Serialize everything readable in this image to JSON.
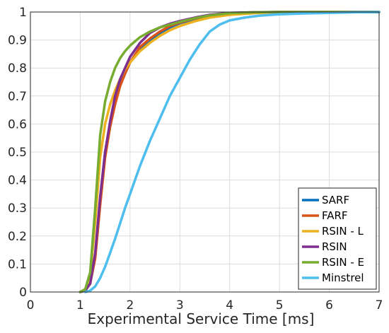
{
  "chart_data": {
    "type": "line",
    "title": "",
    "xlabel": "Experimental Service Time [ms]",
    "ylabel": "",
    "xlim": [
      0,
      7
    ],
    "ylim": [
      0,
      1
    ],
    "xticks": [
      0,
      1,
      2,
      3,
      4,
      5,
      6,
      7
    ],
    "yticks": [
      0,
      0.1,
      0.2,
      0.3,
      0.4,
      0.5,
      0.6,
      0.7,
      0.8,
      0.9,
      1
    ],
    "xtick_labels": [
      "0",
      "1",
      "2",
      "3",
      "4",
      "5",
      "6",
      "7"
    ],
    "ytick_labels": [
      "0",
      "0.1",
      "0.2",
      "0.3",
      "0.4",
      "0.5",
      "0.6",
      "0.7",
      "0.8",
      "0.9",
      "1"
    ],
    "grid": true,
    "legend_position": "bottom-right",
    "series": [
      {
        "name": "SARF",
        "color": "#0072bd",
        "x": [
          1.0,
          1.1,
          1.2,
          1.3,
          1.4,
          1.5,
          1.6,
          1.7,
          1.8,
          1.9,
          2.0,
          2.2,
          2.4,
          2.6,
          2.8,
          3.0,
          3.3,
          3.6,
          4.0,
          4.5,
          5.0,
          6.0,
          7.0
        ],
        "y": [
          0.0,
          0.005,
          0.03,
          0.13,
          0.33,
          0.5,
          0.6,
          0.68,
          0.74,
          0.78,
          0.82,
          0.87,
          0.9,
          0.925,
          0.945,
          0.96,
          0.975,
          0.985,
          0.995,
          0.998,
          1.0,
          1.0,
          1.0
        ]
      },
      {
        "name": "FARF",
        "color": "#d95319",
        "x": [
          1.0,
          1.1,
          1.2,
          1.3,
          1.4,
          1.5,
          1.6,
          1.7,
          1.8,
          1.9,
          2.0,
          2.2,
          2.4,
          2.6,
          2.8,
          3.0,
          3.3,
          3.6,
          4.0,
          4.5,
          5.0,
          6.0,
          7.0
        ],
        "y": [
          0.0,
          0.005,
          0.03,
          0.12,
          0.31,
          0.48,
          0.59,
          0.67,
          0.735,
          0.78,
          0.82,
          0.875,
          0.905,
          0.93,
          0.95,
          0.962,
          0.977,
          0.987,
          0.995,
          0.998,
          1.0,
          1.0,
          1.0
        ]
      },
      {
        "name": "RSIN - L",
        "color": "#edb120",
        "x": [
          1.0,
          1.1,
          1.2,
          1.3,
          1.4,
          1.5,
          1.6,
          1.7,
          1.8,
          1.9,
          2.0,
          2.2,
          2.4,
          2.6,
          2.8,
          3.0,
          3.3,
          3.6,
          4.0,
          4.5,
          5.0,
          6.0,
          7.0
        ],
        "y": [
          0.0,
          0.01,
          0.06,
          0.25,
          0.48,
          0.6,
          0.67,
          0.72,
          0.76,
          0.795,
          0.82,
          0.86,
          0.89,
          0.915,
          0.935,
          0.95,
          0.967,
          0.98,
          0.99,
          0.996,
          1.0,
          1.0,
          1.0
        ]
      },
      {
        "name": "RSIN",
        "color": "#7e2f8e",
        "x": [
          1.0,
          1.1,
          1.2,
          1.3,
          1.4,
          1.5,
          1.6,
          1.7,
          1.8,
          1.9,
          2.0,
          2.2,
          2.4,
          2.6,
          2.8,
          3.0,
          3.3,
          3.6,
          4.0,
          4.5,
          5.0,
          6.0,
          7.0
        ],
        "y": [
          0.0,
          0.005,
          0.03,
          0.14,
          0.34,
          0.5,
          0.61,
          0.7,
          0.76,
          0.8,
          0.84,
          0.89,
          0.925,
          0.945,
          0.958,
          0.968,
          0.98,
          0.99,
          0.997,
          0.999,
          1.0,
          1.0,
          1.0
        ]
      },
      {
        "name": "RSIN - E",
        "color": "#77ac30",
        "x": [
          1.0,
          1.1,
          1.2,
          1.3,
          1.4,
          1.5,
          1.6,
          1.7,
          1.8,
          1.9,
          2.0,
          2.2,
          2.4,
          2.6,
          2.8,
          3.0,
          3.3,
          3.6,
          4.0,
          4.5,
          5.0,
          6.0,
          7.0
        ],
        "y": [
          0.0,
          0.01,
          0.07,
          0.3,
          0.56,
          0.68,
          0.75,
          0.8,
          0.835,
          0.86,
          0.88,
          0.91,
          0.93,
          0.945,
          0.955,
          0.965,
          0.978,
          0.988,
          0.996,
          0.999,
          1.0,
          1.0,
          1.0
        ]
      },
      {
        "name": "Minstrel",
        "color": "#4dbeee",
        "x": [
          1.1,
          1.2,
          1.3,
          1.4,
          1.5,
          1.6,
          1.7,
          1.8,
          1.9,
          2.0,
          2.2,
          2.4,
          2.6,
          2.8,
          3.0,
          3.2,
          3.4,
          3.6,
          3.8,
          4.0,
          4.3,
          4.6,
          5.0,
          5.5,
          6.0,
          6.5,
          7.0
        ],
        "y": [
          0.0,
          0.005,
          0.02,
          0.05,
          0.09,
          0.14,
          0.19,
          0.245,
          0.3,
          0.35,
          0.45,
          0.54,
          0.62,
          0.7,
          0.765,
          0.83,
          0.885,
          0.93,
          0.955,
          0.97,
          0.98,
          0.987,
          0.992,
          0.995,
          0.997,
          0.999,
          1.0
        ]
      }
    ]
  }
}
